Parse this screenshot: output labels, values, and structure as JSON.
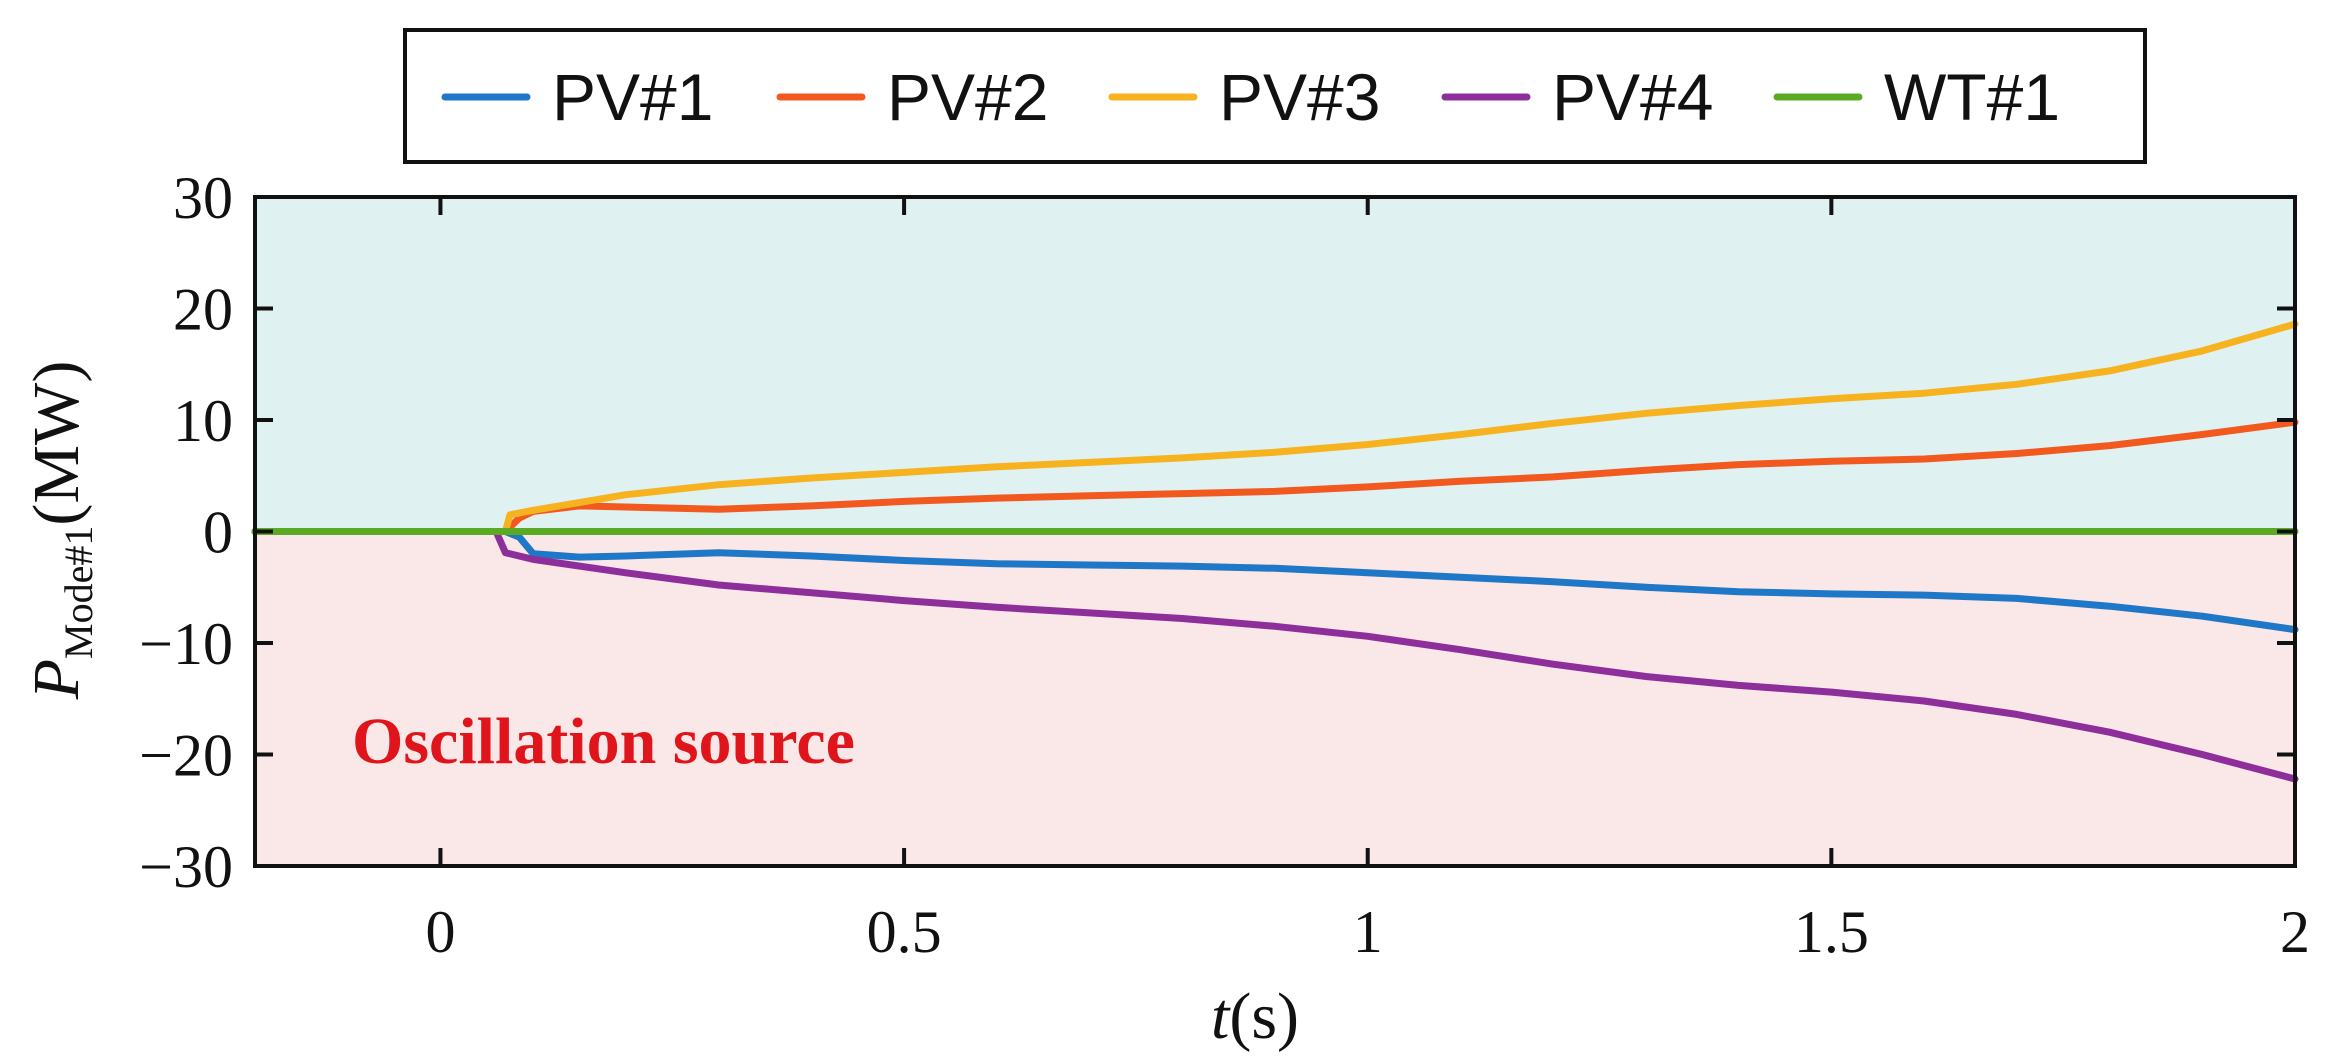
{
  "chart_data": {
    "type": "line",
    "title": "",
    "xlabel_italic": "t",
    "xlabel_rest": "(s)",
    "ylabel_italic": "P",
    "ylabel_sub": "Mode#1",
    "ylabel_rest": "(MW)",
    "xlim": [
      -0.2,
      2
    ],
    "ylim": [
      -30,
      30
    ],
    "xticks": [
      0,
      0.5,
      1,
      1.5,
      2
    ],
    "xtick_labels": [
      "0",
      "0.5",
      "1",
      "1.5",
      "2"
    ],
    "yticks": [
      30,
      20,
      10,
      0,
      -10,
      -20,
      -30
    ],
    "ytick_labels": [
      "30",
      "20",
      "10",
      "0",
      "−10",
      "−20",
      "−30"
    ],
    "legend_position": "top-center",
    "regions": [
      {
        "name": "positive",
        "from": 0,
        "to": 30,
        "color": "#e0f1f1"
      },
      {
        "name": "negative",
        "from": -30,
        "to": 0,
        "color": "#fae7e7"
      }
    ],
    "annotation": {
      "text": "Oscillation source",
      "color": "#e0151c"
    },
    "series": [
      {
        "name": "PV#1",
        "color": "#1f77c7",
        "points": [
          [
            -0.2,
            0
          ],
          [
            0.07,
            0
          ],
          [
            0.085,
            -0.5
          ],
          [
            0.1,
            -2
          ],
          [
            0.15,
            -2.3
          ],
          [
            0.2,
            -2.2
          ],
          [
            0.3,
            -1.9
          ],
          [
            0.4,
            -2.2
          ],
          [
            0.5,
            -2.6
          ],
          [
            0.6,
            -2.9
          ],
          [
            0.7,
            -3.0
          ],
          [
            0.8,
            -3.1
          ],
          [
            0.9,
            -3.3
          ],
          [
            1.0,
            -3.7
          ],
          [
            1.1,
            -4.1
          ],
          [
            1.2,
            -4.5
          ],
          [
            1.3,
            -5.0
          ],
          [
            1.4,
            -5.4
          ],
          [
            1.5,
            -5.6
          ],
          [
            1.6,
            -5.7
          ],
          [
            1.7,
            -6.0
          ],
          [
            1.8,
            -6.7
          ],
          [
            1.9,
            -7.6
          ],
          [
            2.0,
            -8.8
          ]
        ]
      },
      {
        "name": "PV#2",
        "color": "#f2591f",
        "points": [
          [
            -0.2,
            0
          ],
          [
            0.07,
            0
          ],
          [
            0.085,
            1.2
          ],
          [
            0.1,
            1.8
          ],
          [
            0.15,
            2.3
          ],
          [
            0.2,
            2.2
          ],
          [
            0.3,
            2.0
          ],
          [
            0.4,
            2.3
          ],
          [
            0.5,
            2.7
          ],
          [
            0.6,
            3.0
          ],
          [
            0.7,
            3.2
          ],
          [
            0.8,
            3.4
          ],
          [
            0.9,
            3.6
          ],
          [
            1.0,
            4.0
          ],
          [
            1.1,
            4.5
          ],
          [
            1.2,
            4.9
          ],
          [
            1.3,
            5.5
          ],
          [
            1.4,
            6.0
          ],
          [
            1.5,
            6.3
          ],
          [
            1.6,
            6.5
          ],
          [
            1.7,
            7.0
          ],
          [
            1.8,
            7.7
          ],
          [
            1.9,
            8.7
          ],
          [
            2.0,
            9.8
          ]
        ]
      },
      {
        "name": "PV#3",
        "color": "#f7b21f",
        "points": [
          [
            -0.2,
            0
          ],
          [
            0.07,
            0
          ],
          [
            0.075,
            1.5
          ],
          [
            0.1,
            1.9
          ],
          [
            0.2,
            3.3
          ],
          [
            0.3,
            4.2
          ],
          [
            0.4,
            4.8
          ],
          [
            0.5,
            5.3
          ],
          [
            0.6,
            5.8
          ],
          [
            0.7,
            6.2
          ],
          [
            0.8,
            6.6
          ],
          [
            0.9,
            7.1
          ],
          [
            1.0,
            7.8
          ],
          [
            1.1,
            8.7
          ],
          [
            1.2,
            9.7
          ],
          [
            1.3,
            10.6
          ],
          [
            1.4,
            11.3
          ],
          [
            1.5,
            11.9
          ],
          [
            1.6,
            12.4
          ],
          [
            1.7,
            13.2
          ],
          [
            1.8,
            14.4
          ],
          [
            1.9,
            16.2
          ],
          [
            2.0,
            18.6
          ]
        ]
      },
      {
        "name": "PV#4",
        "color": "#8e2e9a",
        "points": [
          [
            -0.2,
            0
          ],
          [
            0.06,
            0
          ],
          [
            0.07,
            -1.9
          ],
          [
            0.1,
            -2.5
          ],
          [
            0.2,
            -3.7
          ],
          [
            0.3,
            -4.8
          ],
          [
            0.4,
            -5.5
          ],
          [
            0.5,
            -6.2
          ],
          [
            0.6,
            -6.8
          ],
          [
            0.7,
            -7.3
          ],
          [
            0.8,
            -7.8
          ],
          [
            0.9,
            -8.5
          ],
          [
            1.0,
            -9.4
          ],
          [
            1.1,
            -10.6
          ],
          [
            1.2,
            -11.9
          ],
          [
            1.3,
            -13.0
          ],
          [
            1.4,
            -13.8
          ],
          [
            1.5,
            -14.4
          ],
          [
            1.6,
            -15.2
          ],
          [
            1.7,
            -16.4
          ],
          [
            1.8,
            -18.0
          ],
          [
            1.9,
            -20.0
          ],
          [
            2.0,
            -22.2
          ]
        ]
      },
      {
        "name": "WT#1",
        "color": "#5aaa24",
        "points": [
          [
            -0.2,
            0
          ],
          [
            2.0,
            0
          ]
        ]
      }
    ]
  }
}
